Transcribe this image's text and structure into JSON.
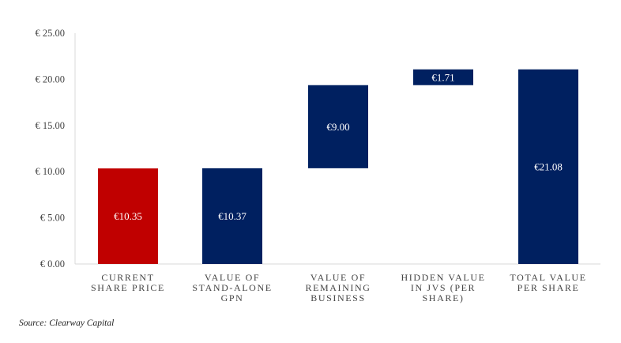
{
  "chart_data": {
    "type": "bar",
    "subtype": "waterfall",
    "title": "",
    "xlabel": "",
    "ylabel": "",
    "ylim": [
      0,
      25
    ],
    "yticks": [
      "€ 0.00",
      "€ 5.00",
      "€ 10.00",
      "€ 15.00",
      "€ 20.00",
      "€ 25.00"
    ],
    "ytick_values": [
      0,
      5,
      10,
      15,
      20,
      25
    ],
    "grid": false,
    "bars": [
      {
        "category": [
          "CURRENT",
          "SHARE PRICE"
        ],
        "base": 0,
        "value": 10.35,
        "label": "€10.35",
        "color": "#c00000"
      },
      {
        "category": [
          "VALUE OF",
          "STAND-ALONE",
          "GPN"
        ],
        "base": 0,
        "value": 10.37,
        "label": "€10.37",
        "color": "#002060"
      },
      {
        "category": [
          "VALUE OF",
          "REMAINING",
          "BUSINESS"
        ],
        "base": 10.37,
        "value": 9.0,
        "label": "€9.00",
        "color": "#002060"
      },
      {
        "category": [
          "HIDDEN VALUE",
          "IN JVS (PER",
          "SHARE)"
        ],
        "base": 19.37,
        "value": 1.71,
        "label": "€1.71",
        "color": "#002060"
      },
      {
        "category": [
          "TOTAL VALUE",
          "PER SHARE"
        ],
        "base": 0,
        "value": 21.08,
        "label": "€21.08",
        "color": "#002060"
      }
    ]
  },
  "source": "Source: Clearway Capital"
}
